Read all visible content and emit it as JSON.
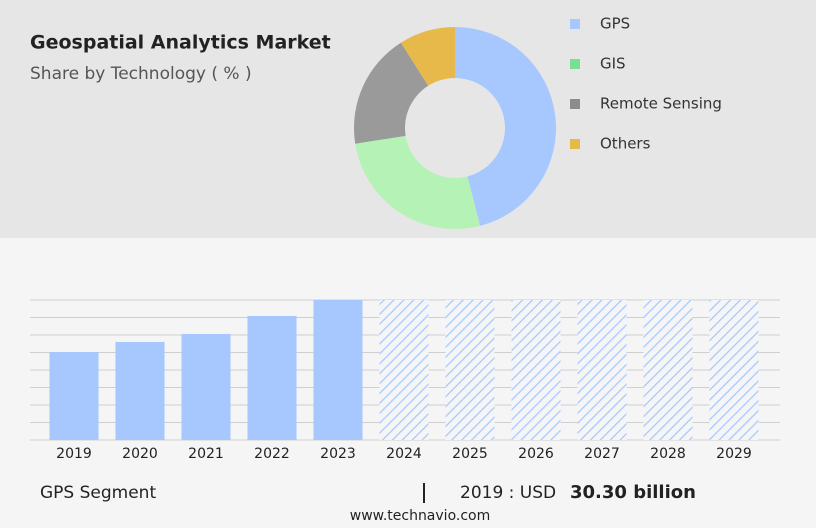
{
  "title": "Geospatial Analytics Market",
  "subtitle": "Share by Technology ( % )",
  "chart_data": [
    {
      "type": "donut",
      "categories": [
        "GPS",
        "GIS",
        "Remote Sensing",
        "Others"
      ],
      "values": [
        46,
        26.5,
        18.5,
        9
      ],
      "colors": [
        "#a6c8ff",
        "#b5f2b6",
        "#9a9a9a",
        "#e6b94a"
      ],
      "legend_colors": [
        "#a6c8ff",
        "#78e08f",
        "#8c8c8c",
        "#e6b94a"
      ]
    },
    {
      "type": "bar",
      "categories": [
        "2019",
        "2020",
        "2021",
        "2022",
        "2023",
        "2024",
        "2025",
        "2026",
        "2027",
        "2028",
        "2029"
      ],
      "values": [
        30.3,
        33.75,
        36.5,
        42.7,
        48.2,
        null,
        null,
        null,
        null,
        null,
        null
      ],
      "color": "#a6c8ff",
      "ylim": [
        0,
        48.2
      ]
    }
  ],
  "footer": {
    "segment": "GPS Segment",
    "year_currency": "2019 : USD",
    "value": "30.30 billion",
    "website": "www.technavio.com"
  }
}
